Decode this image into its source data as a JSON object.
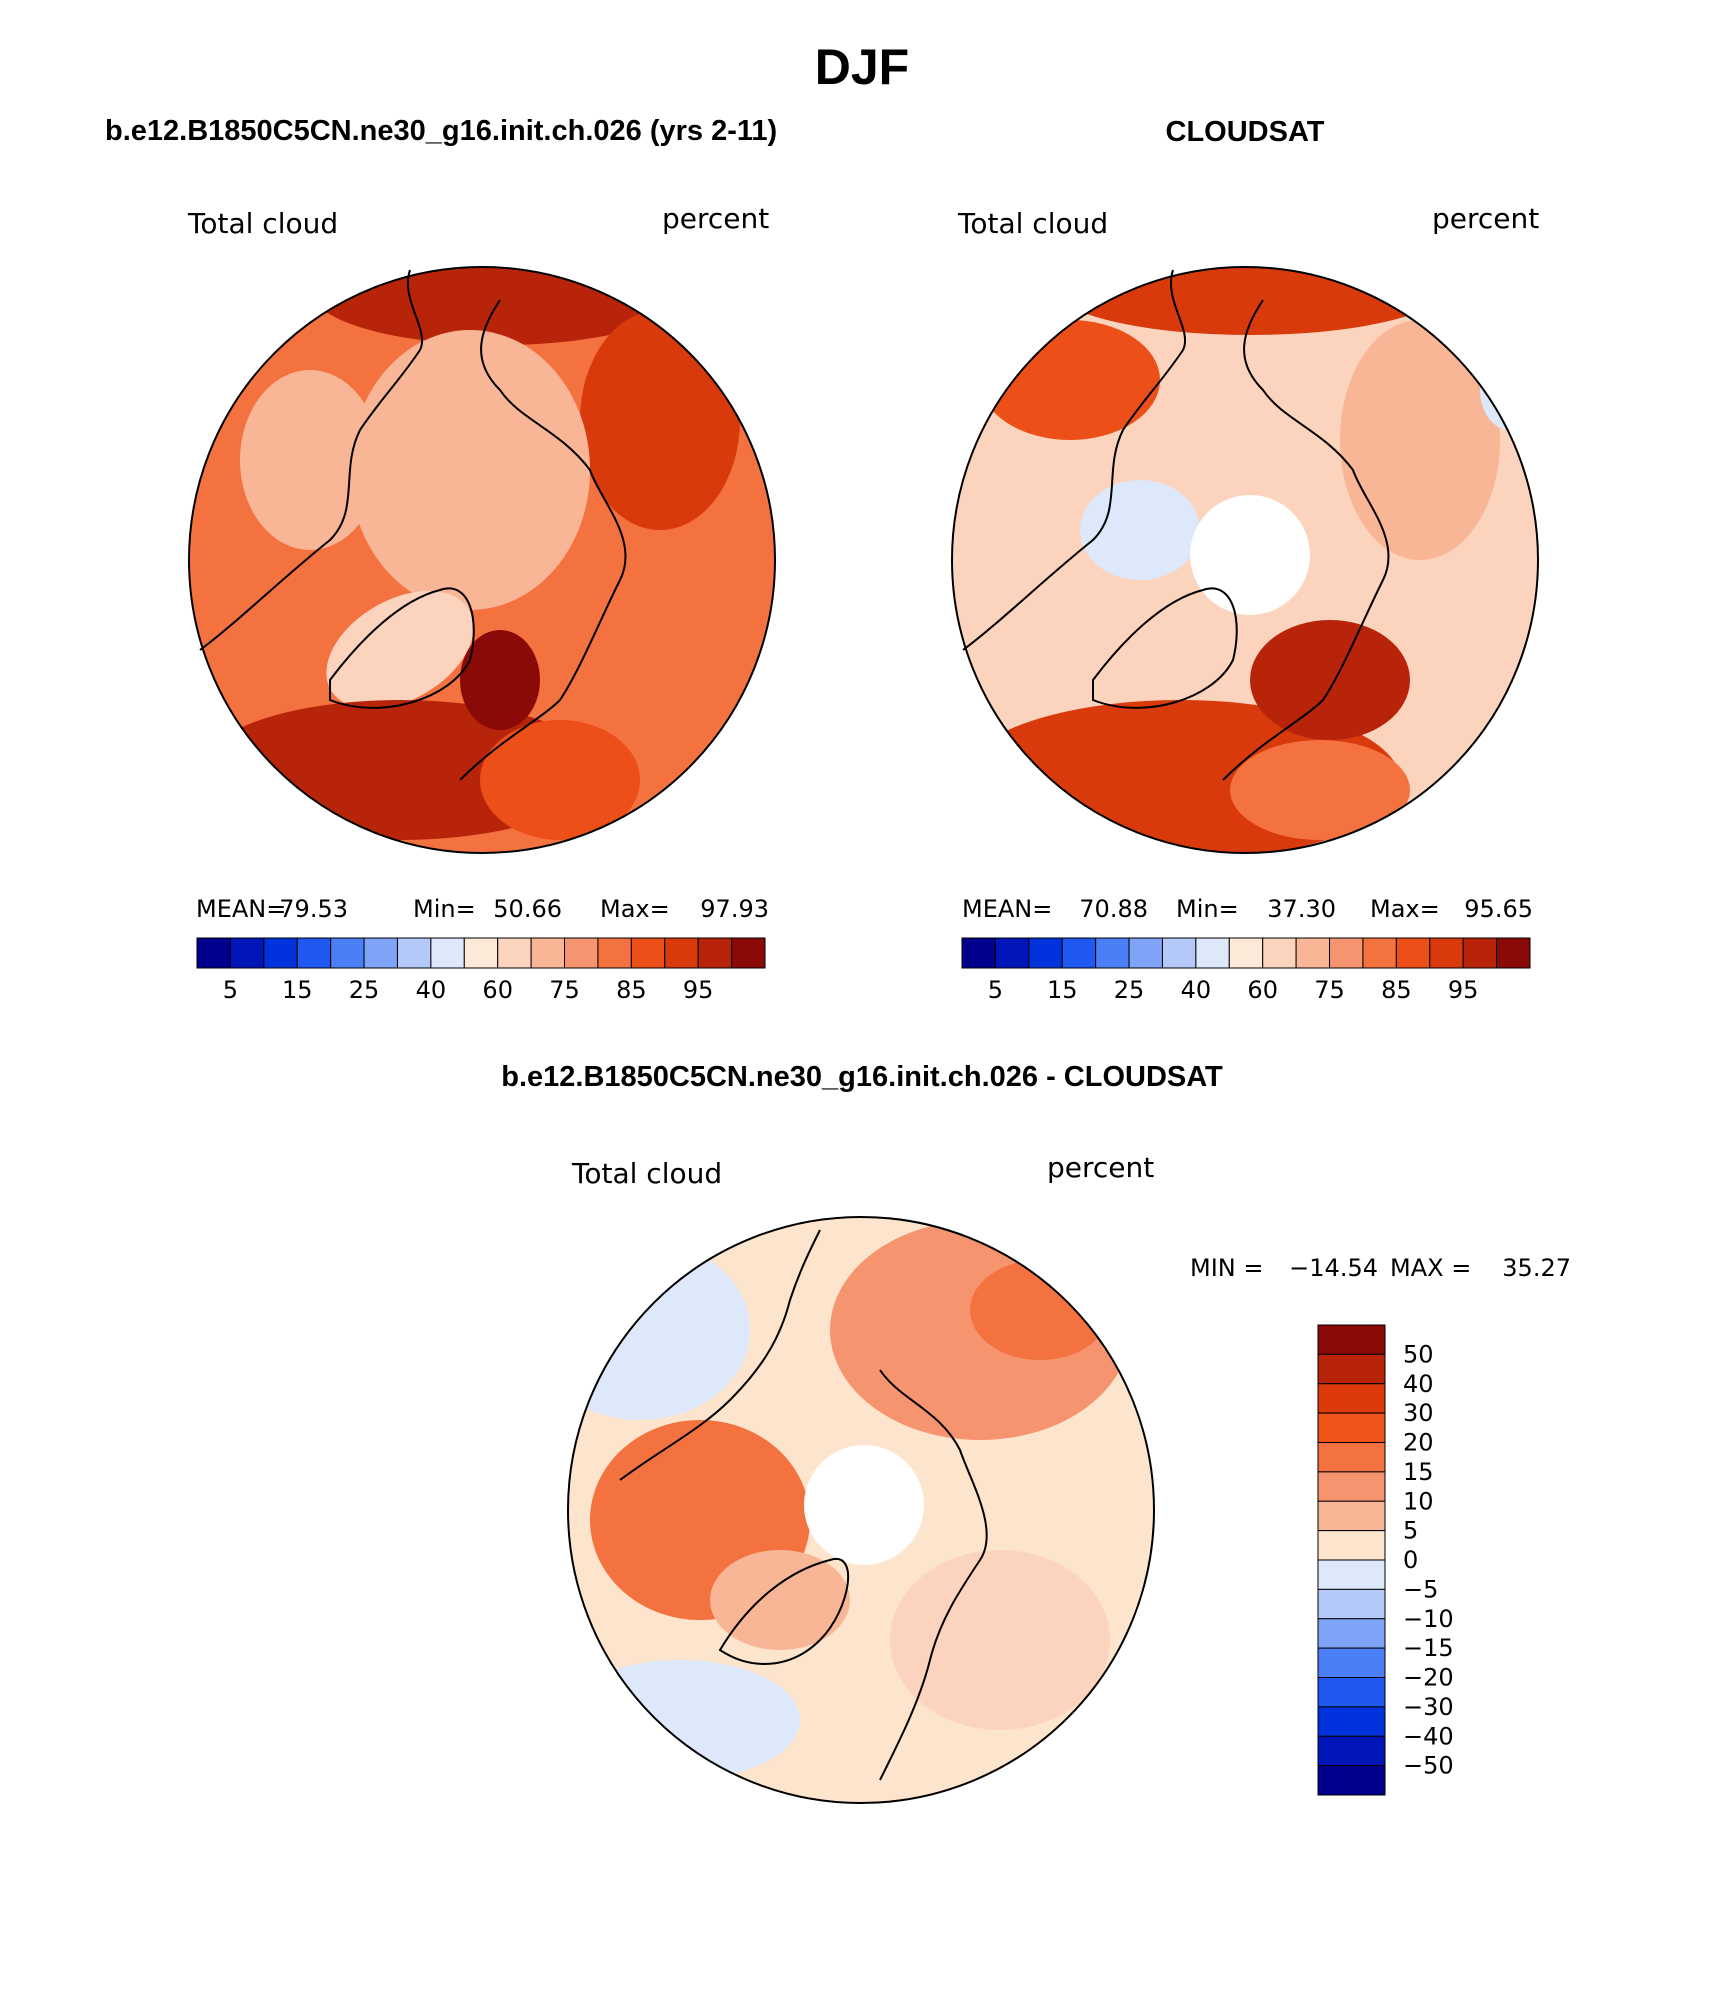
{
  "page": {
    "title": "DJF",
    "model_title": "b.e12.B1850C5CN.ne30_g16.init.ch.026 (yrs 2-11)",
    "obs_title": "CLOUDSAT",
    "diff_title": "b.e12.B1850C5CN.ne30_g16.init.ch.026 - CLOUDSAT"
  },
  "chart_data": [
    {
      "type": "heatmap",
      "projection": "north-polar-stereographic",
      "variable": "Total cloud",
      "units": "percent",
      "stats": {
        "mean_label": "MEAN=",
        "mean": "79.53",
        "min_label": "Min=",
        "min": "50.66",
        "max_label": "Max=",
        "max": "97.93"
      },
      "colorbar": {
        "colors": [
          "#00008c",
          "#0016b8",
          "#0033dc",
          "#1f59f2",
          "#4b7ff7",
          "#7fa3f7",
          "#b4c9f8",
          "#dde9fb",
          "#fde9d8",
          "#fcd3bd",
          "#f9b697",
          "#f79470",
          "#f4723f",
          "#ec4f17",
          "#d93a0c",
          "#b8240a",
          "#8a0a08"
        ],
        "tick_labels": [
          "5",
          "15",
          "25",
          "40",
          "60",
          "75",
          "85",
          "95"
        ]
      }
    },
    {
      "type": "heatmap",
      "projection": "north-polar-stereographic",
      "variable": "Total cloud",
      "units": "percent",
      "stats": {
        "mean_label": "MEAN=",
        "mean": "70.88",
        "min_label": "Min=",
        "min": "37.30",
        "max_label": "Max=",
        "max": "95.65"
      },
      "colorbar": {
        "colors": [
          "#00008c",
          "#0016b8",
          "#0033dc",
          "#1f59f2",
          "#4b7ff7",
          "#7fa3f7",
          "#b4c9f8",
          "#dde9fb",
          "#fde9d8",
          "#fcd3bd",
          "#f9b697",
          "#f79470",
          "#f4723f",
          "#ec4f17",
          "#d93a0c",
          "#b8240a",
          "#8a0a08"
        ],
        "tick_labels": [
          "5",
          "15",
          "25",
          "40",
          "60",
          "75",
          "85",
          "95"
        ]
      }
    },
    {
      "type": "heatmap",
      "projection": "north-polar-stereographic",
      "variable": "Total cloud",
      "units": "percent",
      "stats": {
        "min_label": "MIN =",
        "min": "−14.54",
        "max_label": "MAX =",
        "max": "35.27"
      },
      "colorbar": {
        "colors": [
          "#8a0a08",
          "#b8240a",
          "#dc3a0a",
          "#ef5518",
          "#f4723f",
          "#f79470",
          "#f9b697",
          "#fde4cc",
          "#dde9fb",
          "#b4c9f8",
          "#7fa3f7",
          "#4b7ff7",
          "#1f59f2",
          "#0033dc",
          "#0016b8",
          "#00008c"
        ],
        "tick_labels": [
          "50",
          "40",
          "30",
          "20",
          "15",
          "10",
          "5",
          "0",
          "−5",
          "−10",
          "−15",
          "−20",
          "−30",
          "−40",
          "−50"
        ]
      }
    }
  ]
}
